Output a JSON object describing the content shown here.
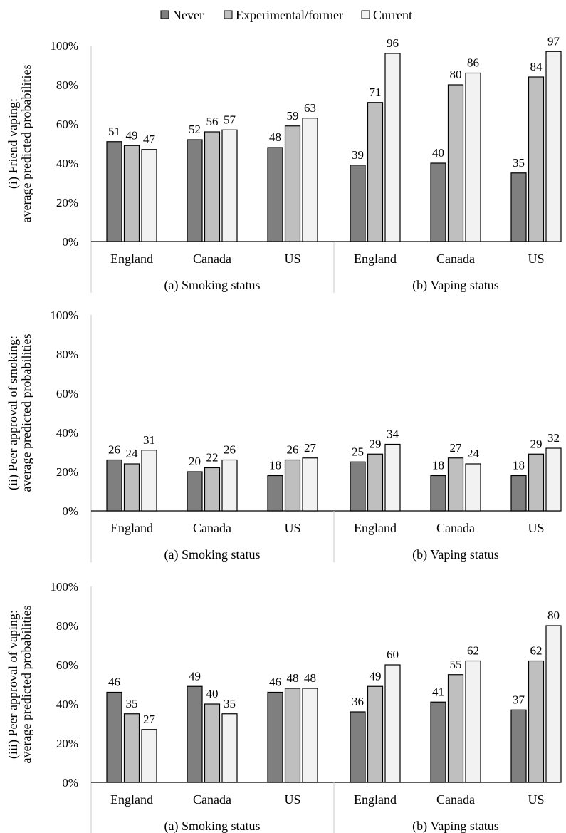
{
  "legend": [
    {
      "name": "Never",
      "color": "#7f7f7f"
    },
    {
      "name": "Experimental/former",
      "color": "#bfbfbf"
    },
    {
      "name": "Current",
      "color": "#f2f2f2"
    }
  ],
  "chart_data": [
    {
      "type": "bar",
      "ylabel": [
        "(i) Friend vaping:",
        "average predicted probabilities"
      ],
      "ylim": [
        0,
        100
      ],
      "yticks": [
        "0%",
        "20%",
        "40%",
        "60%",
        "80%",
        "100%"
      ],
      "groups": [
        {
          "label": "(a) Smoking status",
          "categories": [
            {
              "name": "England",
              "values": [
                51,
                49,
                47
              ]
            },
            {
              "name": "Canada",
              "values": [
                52,
                56,
                57
              ]
            },
            {
              "name": "US",
              "values": [
                48,
                59,
                63
              ]
            }
          ]
        },
        {
          "label": "(b) Vaping status",
          "categories": [
            {
              "name": "England",
              "values": [
                39,
                71,
                96
              ]
            },
            {
              "name": "Canada",
              "values": [
                40,
                80,
                86
              ]
            },
            {
              "name": "US",
              "values": [
                35,
                84,
                97
              ]
            }
          ]
        }
      ]
    },
    {
      "type": "bar",
      "ylabel": [
        "(ii) Peer approval of smoking:",
        "average predicted probabilities"
      ],
      "ylim": [
        0,
        100
      ],
      "yticks": [
        "0%",
        "20%",
        "40%",
        "60%",
        "80%",
        "100%"
      ],
      "groups": [
        {
          "label": "(a) Smoking status",
          "categories": [
            {
              "name": "England",
              "values": [
                26,
                24,
                31
              ]
            },
            {
              "name": "Canada",
              "values": [
                20,
                22,
                26
              ]
            },
            {
              "name": "US",
              "values": [
                18,
                26,
                27
              ]
            }
          ]
        },
        {
          "label": "(b) Vaping status",
          "categories": [
            {
              "name": "England",
              "values": [
                25,
                29,
                34
              ]
            },
            {
              "name": "Canada",
              "values": [
                18,
                27,
                24
              ]
            },
            {
              "name": "US",
              "values": [
                18,
                29,
                32
              ]
            }
          ]
        }
      ]
    },
    {
      "type": "bar",
      "ylabel": [
        "(iii) Peer approval of vaping:",
        "average predicted probabilities"
      ],
      "ylim": [
        0,
        100
      ],
      "yticks": [
        "0%",
        "20%",
        "40%",
        "60%",
        "80%",
        "100%"
      ],
      "groups": [
        {
          "label": "(a) Smoking status",
          "categories": [
            {
              "name": "England",
              "values": [
                46,
                35,
                27
              ]
            },
            {
              "name": "Canada",
              "values": [
                49,
                40,
                35
              ]
            },
            {
              "name": "US",
              "values": [
                46,
                48,
                48
              ]
            }
          ]
        },
        {
          "label": "(b) Vaping status",
          "categories": [
            {
              "name": "England",
              "values": [
                36,
                49,
                60
              ]
            },
            {
              "name": "Canada",
              "values": [
                41,
                55,
                62
              ]
            },
            {
              "name": "US",
              "values": [
                37,
                62,
                80
              ]
            }
          ]
        }
      ]
    }
  ]
}
